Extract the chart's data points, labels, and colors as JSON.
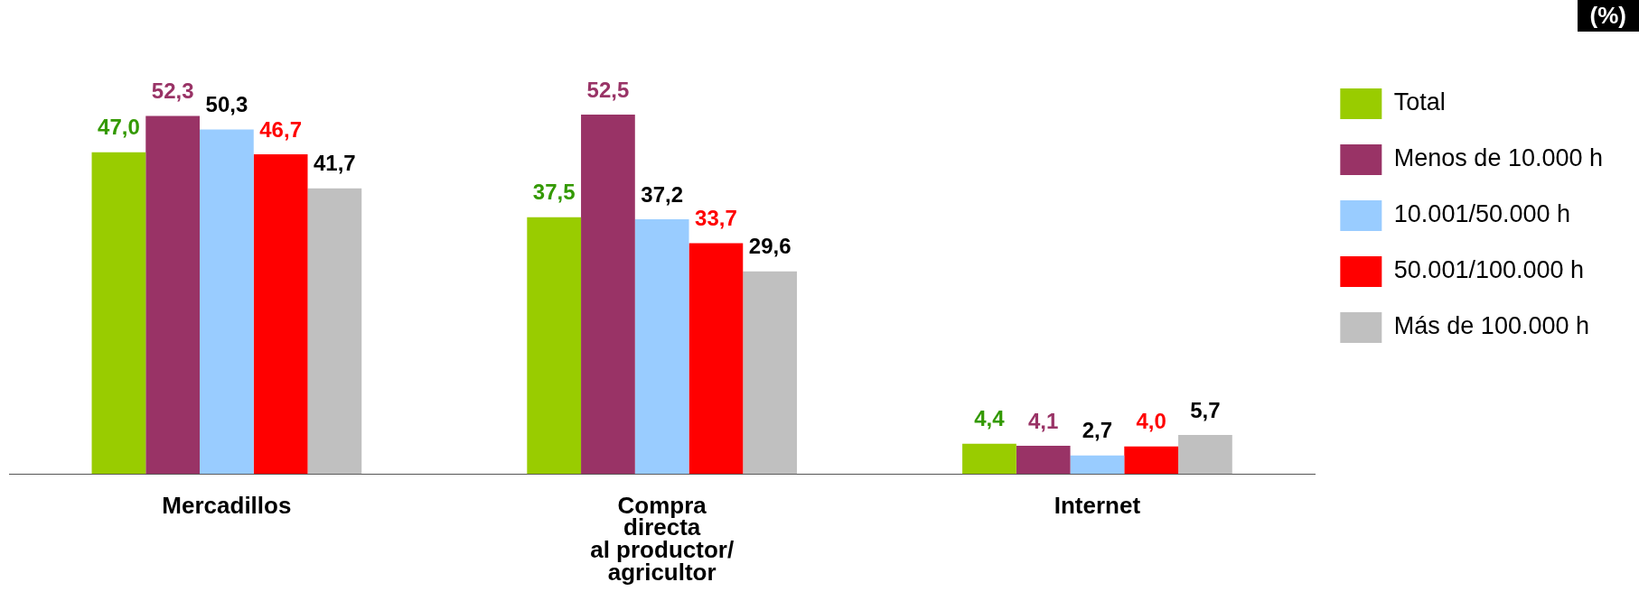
{
  "chart_data": {
    "type": "bar",
    "categories": [
      "Mercadillos",
      "Compra\ndirecta\nal productor/\nagricultor",
      "Internet"
    ],
    "series": [
      {
        "name": "Total",
        "color": "#99cc00",
        "values": [
          47.0,
          37.5,
          4.4
        ],
        "value_labels": [
          "47,0",
          "37,5",
          "4,4"
        ]
      },
      {
        "name": "Menos de 10.000 h",
        "color": "#993366",
        "values": [
          52.3,
          52.5,
          4.1
        ],
        "value_labels": [
          "52,3",
          "52,5",
          "4,1"
        ]
      },
      {
        "name": "10.001/50.000 h",
        "color": "#99ccff",
        "values": [
          50.3,
          37.2,
          2.7
        ],
        "value_labels": [
          "50,3",
          "37,2",
          "2,7"
        ]
      },
      {
        "name": "50.001/100.000 h",
        "color": "#ff0000",
        "values": [
          46.7,
          33.7,
          4.0
        ],
        "value_labels": [
          "46,7",
          "33,7",
          "4,0"
        ]
      },
      {
        "name": "Más de 100.000 h",
        "color": "#c0c0c0",
        "values": [
          41.7,
          29.6,
          5.7
        ],
        "value_labels": [
          "41,7",
          "29,6",
          "5,7"
        ]
      }
    ],
    "legend": "top right",
    "annotations": [
      "(%)"
    ]
  }
}
